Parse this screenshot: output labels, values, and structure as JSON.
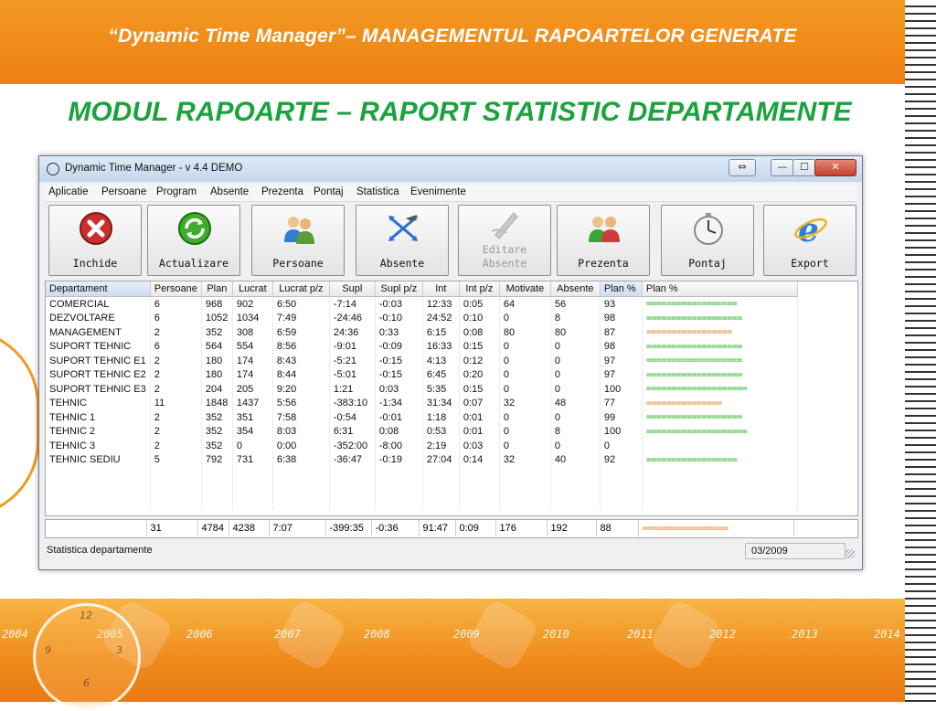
{
  "slide": {
    "header_title": "“Dynamic Time Manager”– MANAGEMENTUL RAPOARTELOR GENERATE",
    "title": "MODUL RAPOARTE – RAPORT STATISTIC DEPARTAMENTE",
    "years": [
      "2004",
      "2005",
      "2006",
      "2007",
      "2008",
      "2009",
      "2010",
      "2011",
      "2012",
      "2013",
      "2014"
    ],
    "clock_numbers": [
      "12",
      "9",
      "3",
      "6"
    ]
  },
  "window": {
    "title": "Dynamic Time Manager - v 4.4  DEMO",
    "controls": {
      "swap": "⇔",
      "minimize": "—",
      "maximize": "☐",
      "close": "✕"
    }
  },
  "menu": [
    "Aplicatie",
    "Persoane",
    "Program",
    "Absente",
    "Prezenta",
    "Pontaj",
    "Statistica",
    "Evenimente"
  ],
  "toolbar": [
    {
      "label": "Inchide",
      "icon": "close-circle-icon",
      "enabled": true
    },
    {
      "label": "Actualizare",
      "icon": "refresh-icon",
      "enabled": true
    },
    {
      "label": "Persoane",
      "icon": "people-icon",
      "enabled": true
    },
    {
      "label": "Absente",
      "icon": "arrows-icon",
      "enabled": true
    },
    {
      "label": "Editare Absente",
      "icon": "edit-pen-icon",
      "enabled": false
    },
    {
      "label": "Prezenta",
      "icon": "users-icon",
      "enabled": true
    },
    {
      "label": "Pontaj",
      "icon": "stopwatch-icon",
      "enabled": true
    },
    {
      "label": "Export",
      "icon": "internet-explorer-icon",
      "enabled": true
    }
  ],
  "grid": {
    "columns": [
      "Departament",
      "Persoane",
      "Plan",
      "Lucrat",
      "Lucrat p/z",
      "Supl",
      "Supl p/z",
      "Int",
      "Int p/z",
      "Motivate",
      "Absente",
      "Plan %",
      "Plan %"
    ],
    "rows": [
      [
        "COMERCIAL",
        "6",
        "968",
        "902",
        "6:50",
        "-7:14",
        "-0:03",
        "12:33",
        "0:05",
        "64",
        "56",
        "93",
        "=================="
      ],
      [
        "DEZVOLTARE",
        "6",
        "1052",
        "1034",
        "7:49",
        "-24:46",
        "-0:10",
        "24:52",
        "0:10",
        "0",
        "8",
        "98",
        "==================="
      ],
      [
        "MANAGEMENT",
        "2",
        "352",
        "308",
        "6:59",
        "24:36",
        "0:33",
        "6:15",
        "0:08",
        "80",
        "80",
        "87",
        "================="
      ],
      [
        "SUPORT TEHNIC",
        "6",
        "564",
        "554",
        "8:56",
        "-9:01",
        "-0:09",
        "16:33",
        "0:15",
        "0",
        "0",
        "98",
        "==================="
      ],
      [
        "SUPORT TEHNIC E1",
        "2",
        "180",
        "174",
        "8:43",
        "-5:21",
        "-0:15",
        "4:13",
        "0:12",
        "0",
        "0",
        "97",
        "==================="
      ],
      [
        "SUPORT TEHNIC E2",
        "2",
        "180",
        "174",
        "8:44",
        "-5:01",
        "-0:15",
        "6:45",
        "0:20",
        "0",
        "0",
        "97",
        "==================="
      ],
      [
        "SUPORT TEHNIC E3",
        "2",
        "204",
        "205",
        "9:20",
        "1:21",
        "0:03",
        "5:35",
        "0:15",
        "0",
        "0",
        "100",
        "===================="
      ],
      [
        "TEHNIC",
        "11",
        "1848",
        "1437",
        "5:56",
        "-383:10",
        "-1:34",
        "31:34",
        "0:07",
        "32",
        "48",
        "77",
        "==============="
      ],
      [
        "TEHNIC 1",
        "2",
        "352",
        "351",
        "7:58",
        "-0:54",
        "-0:01",
        "1:18",
        "0:01",
        "0",
        "0",
        "99",
        "==================="
      ],
      [
        "TEHNIC 2",
        "2",
        "352",
        "354",
        "8:03",
        "6:31",
        "0:08",
        "0:53",
        "0:01",
        "0",
        "8",
        "100",
        "===================="
      ],
      [
        "TEHNIC 3",
        "2",
        "352",
        "0",
        "0:00",
        "-352:00",
        "-8:00",
        "2:19",
        "0:03",
        "0",
        "0",
        "0",
        ""
      ],
      [
        "TEHNIC SEDIU",
        "5",
        "792",
        "731",
        "6:38",
        "-36:47",
        "-0:19",
        "27:04",
        "0:14",
        "32",
        "40",
        "92",
        "=================="
      ]
    ],
    "bar_colors": {
      "ok": "#19b21f",
      "low": "#e07b16"
    },
    "bar_low_rows": [
      2,
      7
    ]
  },
  "totals": [
    "",
    "31",
    "4784",
    "4238",
    "7:07",
    "-399:35",
    "-0:36",
    "91:47",
    "0:09",
    "176",
    "192",
    "88",
    "================="
  ],
  "status": {
    "left": "Statistica departamente",
    "right": "03/2009"
  }
}
